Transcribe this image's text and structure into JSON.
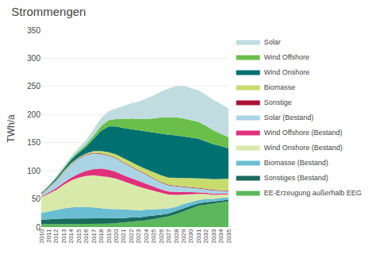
{
  "chart_data": {
    "type": "area",
    "title": "Strommengen",
    "ylabel": "TWh/a",
    "x": [
      2010,
      2011,
      2012,
      2013,
      2014,
      2015,
      2016,
      2017,
      2018,
      2019,
      2020,
      2021,
      2022,
      2023,
      2024,
      2025,
      2026,
      2027,
      2028,
      2029,
      2030,
      2031,
      2032,
      2033,
      2034,
      2035
    ],
    "series": [
      {
        "name": "EE-Erzeugung außerhalb EEG",
        "color": "#5cb85c",
        "values": [
          5,
          5,
          5,
          5,
          5,
          5,
          5,
          5,
          5,
          6,
          7,
          8,
          9,
          10,
          12,
          14,
          16,
          19,
          23,
          28,
          34,
          38,
          40,
          42,
          44,
          46
        ]
      },
      {
        "name": "Sonstiges (Bestand)",
        "color": "#1a6b5e",
        "values": [
          8,
          9,
          9,
          10,
          10,
          10,
          10,
          10,
          10,
          9,
          9,
          8,
          8,
          7,
          7,
          6,
          6,
          5,
          5,
          5,
          4,
          4,
          4,
          3,
          3,
          3
        ]
      },
      {
        "name": "Biomasse (Bestand)",
        "color": "#6bbdd1",
        "values": [
          12,
          14,
          16,
          18,
          20,
          21,
          21,
          20,
          18,
          17,
          16,
          15,
          14,
          13,
          12,
          11,
          10,
          9,
          8,
          8,
          7,
          6,
          6,
          5,
          5,
          4
        ]
      },
      {
        "name": "Wind Onshore (Bestand)",
        "color": "#d8eaaa",
        "values": [
          28,
          32,
          36,
          42,
          48,
          52,
          55,
          57,
          58,
          57,
          54,
          50,
          46,
          42,
          37,
          33,
          29,
          25,
          21,
          17,
          14,
          11,
          9,
          7,
          6,
          5
        ]
      },
      {
        "name": "Wind Offshore (Bestand)",
        "color": "#e0307a",
        "values": [
          1,
          2,
          3,
          4,
          5,
          7,
          9,
          11,
          13,
          13,
          12,
          11,
          10,
          9,
          8,
          7,
          6,
          5,
          5,
          4,
          3,
          3,
          2,
          2,
          2,
          1
        ]
      },
      {
        "name": "Solar (Bestand)",
        "color": "#aad4e4",
        "values": [
          4,
          7,
          13,
          18,
          23,
          26,
          28,
          28,
          26,
          25,
          24,
          22,
          20,
          18,
          16,
          14,
          12,
          11,
          10,
          9,
          8,
          7,
          6,
          6,
          5,
          5
        ]
      },
      {
        "name": "Sonstige",
        "color": "#aa1133",
        "values": [
          1,
          1,
          1,
          1,
          1,
          1,
          1,
          1,
          1,
          1,
          1,
          1,
          1,
          1,
          1,
          1,
          1,
          1,
          1,
          1,
          1,
          1,
          1,
          1,
          1,
          1
        ]
      },
      {
        "name": "Biomasse",
        "color": "#c8dc6e",
        "values": [
          1,
          1,
          1,
          2,
          2,
          2,
          2,
          3,
          4,
          5,
          6,
          7,
          8,
          9,
          10,
          11,
          12,
          13,
          14,
          15,
          16,
          17,
          18,
          19,
          20,
          21
        ]
      },
      {
        "name": "Wind Onshore",
        "color": "#007070",
        "values": [
          1,
          2,
          3,
          4,
          6,
          8,
          12,
          22,
          36,
          46,
          50,
          54,
          58,
          62,
          66,
          70,
          74,
          76,
          76,
          74,
          72,
          70,
          66,
          62,
          58,
          54
        ]
      },
      {
        "name": "Wind Offshore",
        "color": "#6abf4b",
        "values": [
          0,
          0,
          1,
          1,
          2,
          3,
          4,
          6,
          9,
          11,
          13,
          16,
          19,
          21,
          23,
          26,
          29,
          31,
          32,
          32,
          31,
          30,
          28,
          25,
          22,
          20
        ]
      },
      {
        "name": "Solar",
        "color": "#c0dce0",
        "values": [
          0,
          1,
          2,
          3,
          4,
          6,
          8,
          11,
          14,
          16,
          19,
          23,
          27,
          31,
          36,
          41,
          46,
          51,
          56,
          58,
          57,
          56,
          55,
          54,
          53,
          51
        ]
      }
    ],
    "xlim": [
      2010,
      2035
    ],
    "xticks": [
      2010,
      2011,
      2012,
      2013,
      2014,
      2015,
      2016,
      2017,
      2018,
      2019,
      2020,
      2021,
      2022,
      2023,
      2024,
      2025,
      2026,
      2027,
      2028,
      2029,
      2030,
      2031,
      2032,
      2033,
      2034,
      2035
    ],
    "ylim": [
      0,
      350
    ],
    "yticks": [
      0,
      50,
      100,
      150,
      200,
      250,
      300,
      350
    ],
    "stacked": true,
    "grid": true,
    "legend": "upper right"
  }
}
